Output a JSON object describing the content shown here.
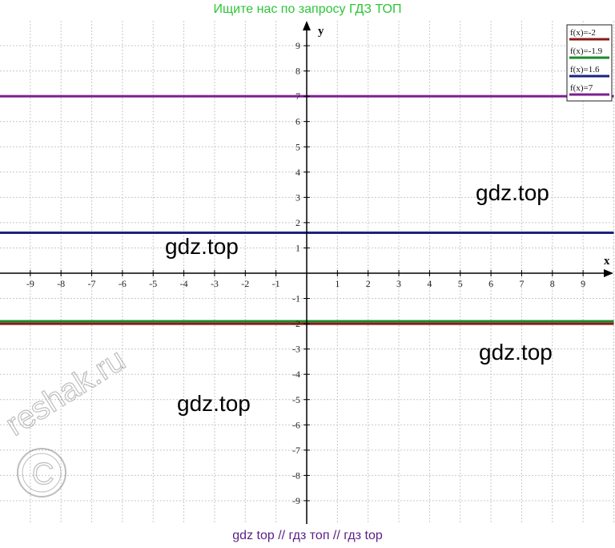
{
  "header_text": "Ищите нас по запросу ГДЗ ТОП",
  "footer_text": "gdz top  //  гдз топ  //  гдз top",
  "watermarks": [
    {
      "text": "gdz.top"
    },
    {
      "text": "gdz.top"
    },
    {
      "text": "gdz.top"
    },
    {
      "text": "gdz.top"
    }
  ],
  "logo_text": "reshak.ru",
  "chart_data": {
    "type": "line",
    "xlabel": "x",
    "ylabel": "y",
    "xlim": [
      -10,
      10
    ],
    "ylim": [
      -10,
      10
    ],
    "xticks": [
      -9,
      -8,
      -7,
      -6,
      -5,
      -4,
      -3,
      -2,
      -1,
      1,
      2,
      3,
      4,
      5,
      6,
      7,
      8,
      9
    ],
    "yticks": [
      -9,
      -8,
      -7,
      -6,
      -5,
      -4,
      -3,
      -2,
      -1,
      1,
      2,
      3,
      4,
      5,
      6,
      7,
      8,
      9
    ],
    "grid": true,
    "legend_position": "top-right",
    "series": [
      {
        "name": "f(x)=-2",
        "color": "#8b1a1a",
        "x": [
          -10,
          10
        ],
        "y": [
          -2,
          -2
        ]
      },
      {
        "name": "f(x)=-1.9",
        "color": "#1a8a2a",
        "x": [
          -10,
          10
        ],
        "y": [
          -1.9,
          -1.9
        ]
      },
      {
        "name": "f(x)=1.6",
        "color": "#1a237e",
        "x": [
          -10,
          10
        ],
        "y": [
          1.6,
          1.6
        ]
      },
      {
        "name": "f(x)=7",
        "color": "#7b1f8f",
        "x": [
          -10,
          10
        ],
        "y": [
          7,
          7
        ]
      }
    ]
  }
}
